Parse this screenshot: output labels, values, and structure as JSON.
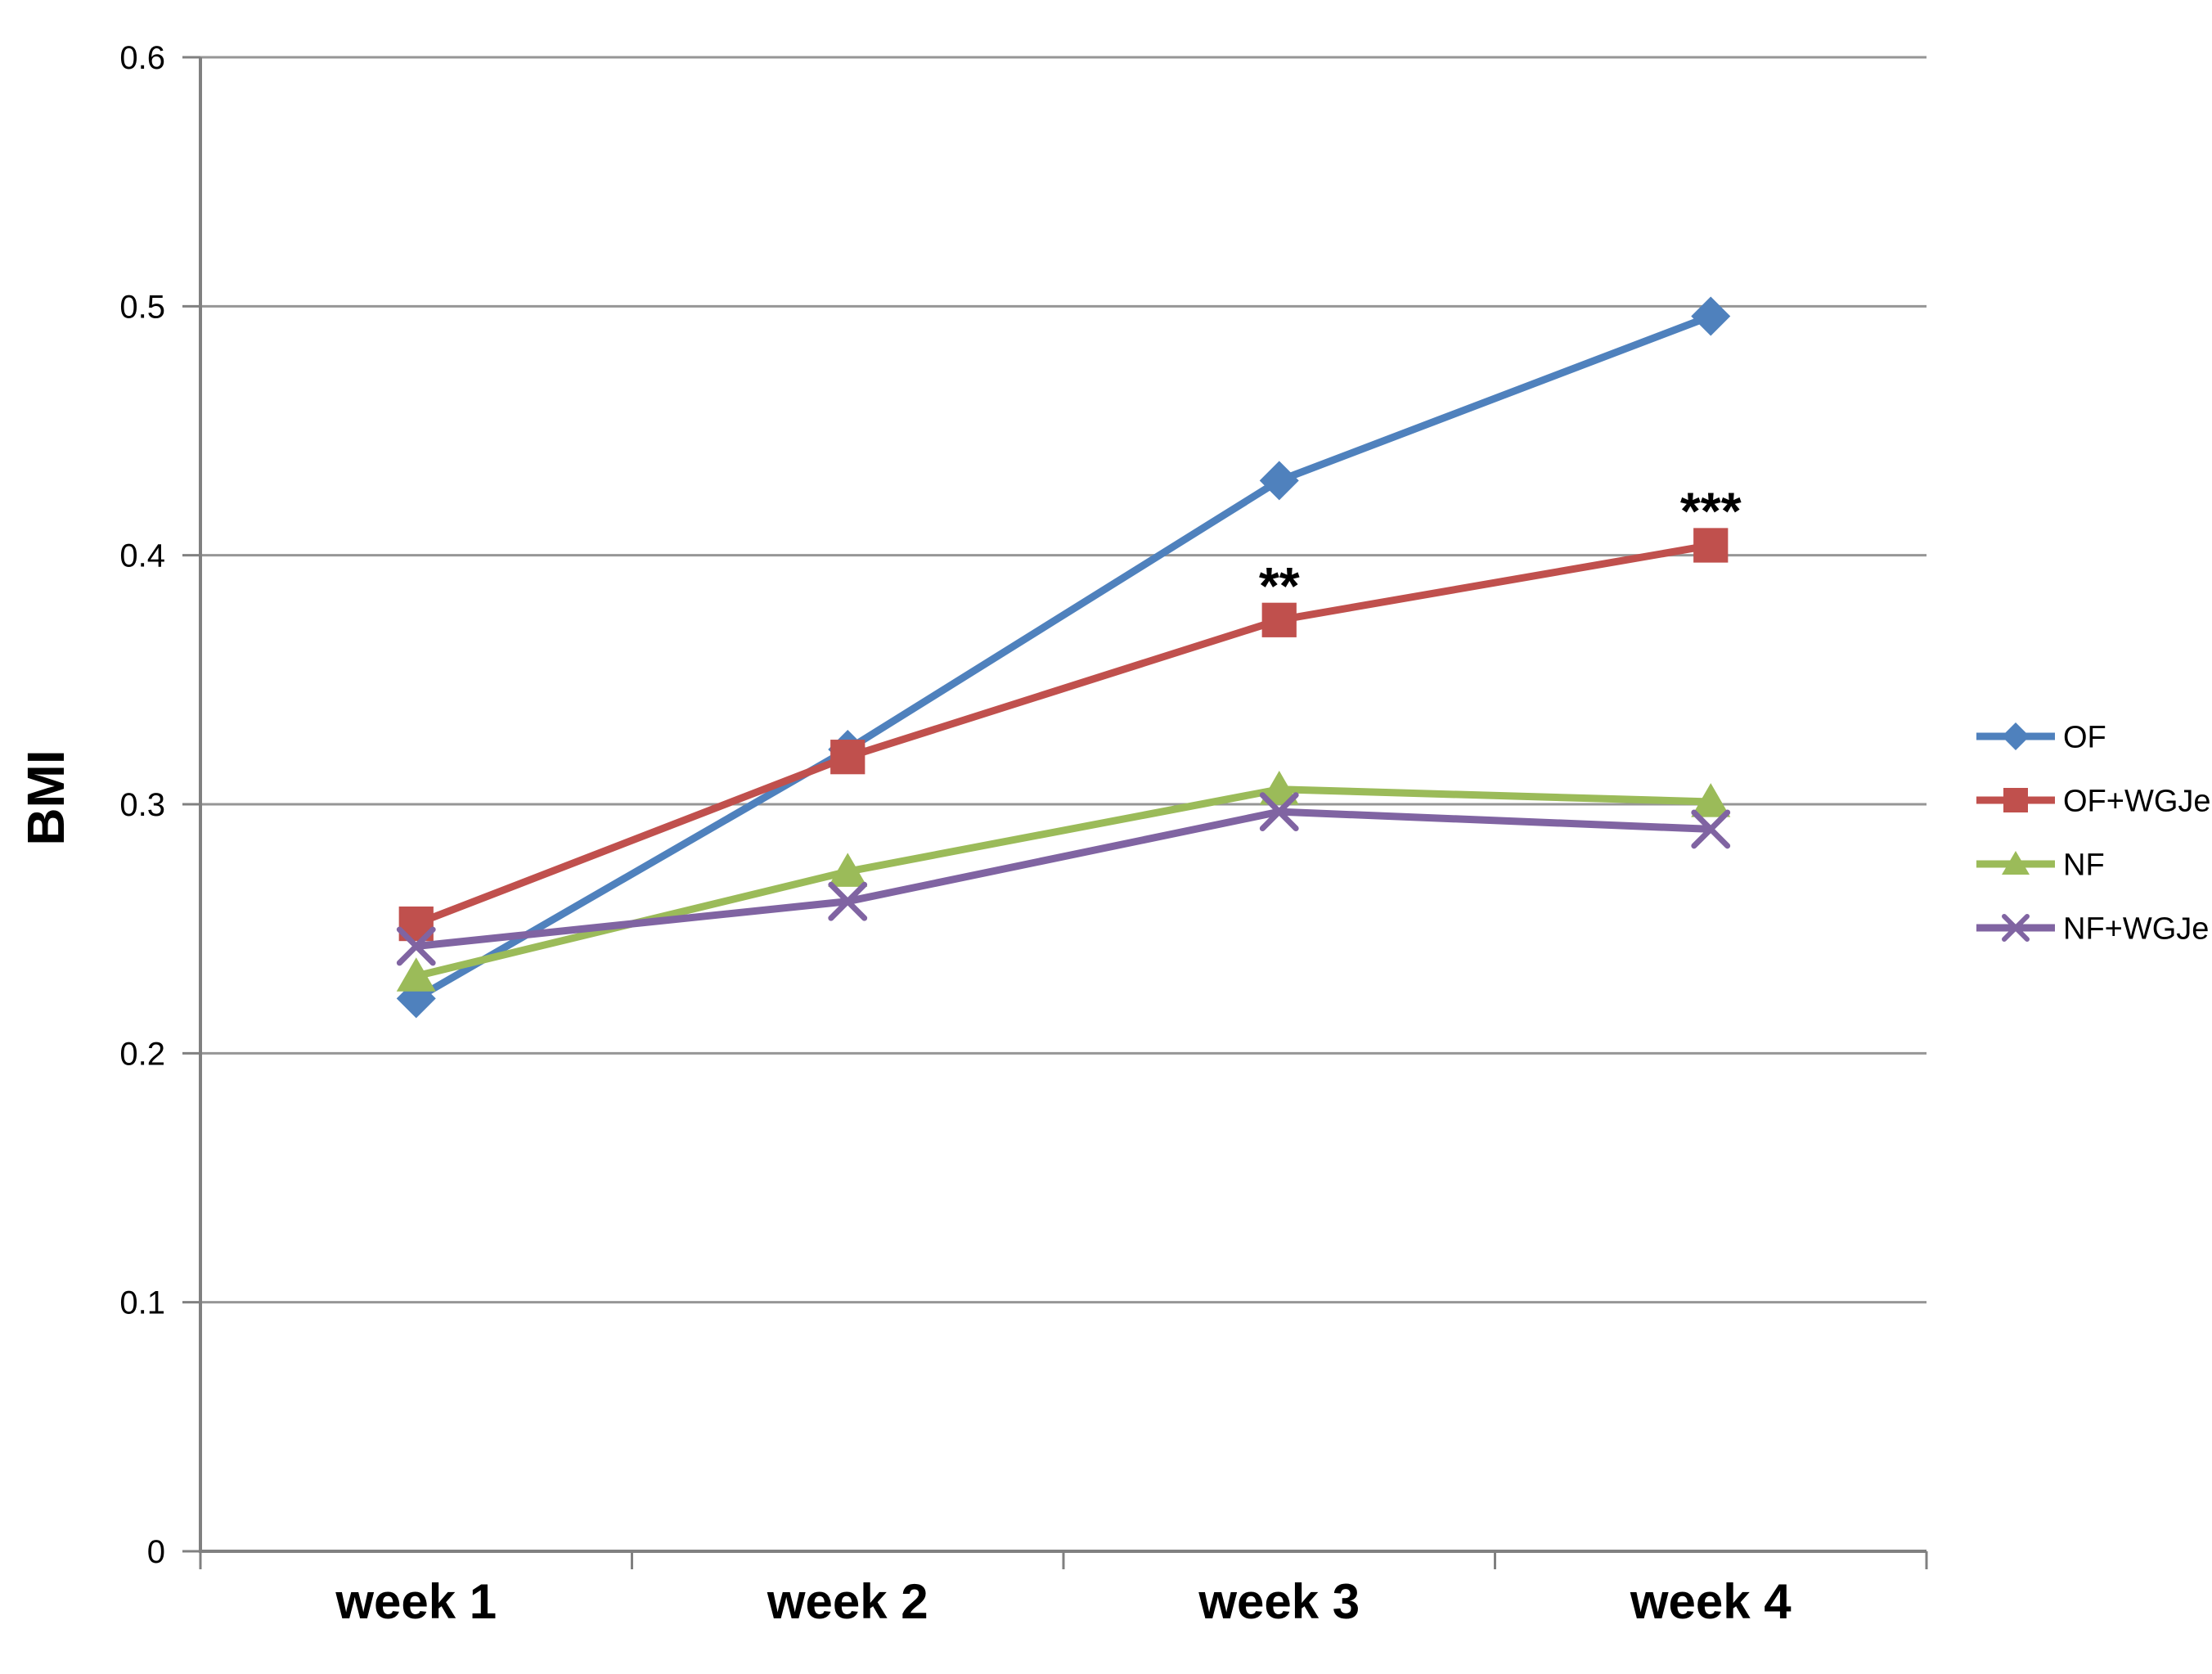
{
  "chart_data": {
    "type": "line",
    "title": "",
    "ylabel": "BMI",
    "xlabel": "",
    "categories": [
      "week 1",
      "week 2",
      "week 3",
      "week 4"
    ],
    "ylim": [
      0,
      0.6
    ],
    "yticks": [
      "0",
      "0.1",
      "0.2",
      "0.3",
      "0.4",
      "0.5",
      "0.6"
    ],
    "grid": "horizontal",
    "legend_position": "right",
    "series": [
      {
        "name": "OF",
        "color": "#4F81BD",
        "marker": "diamond",
        "values": [
          0.222,
          0.322,
          0.43,
          0.496
        ]
      },
      {
        "name": "OF+WGJe",
        "color": "#C0504D",
        "marker": "square",
        "values": [
          0.252,
          0.319,
          0.374,
          0.404
        ]
      },
      {
        "name": "NF",
        "color": "#9BBB59",
        "marker": "triangle",
        "values": [
          0.231,
          0.273,
          0.306,
          0.301
        ]
      },
      {
        "name": "NF+WGJe",
        "color": "#8064A2",
        "marker": "x",
        "values": [
          0.243,
          0.261,
          0.297,
          0.29
        ]
      }
    ],
    "annotations": [
      {
        "text": "**",
        "series": "OF+WGJe",
        "category": "week 3"
      },
      {
        "text": "***",
        "series": "OF+WGJe",
        "category": "week 4"
      }
    ],
    "colors": {
      "gridline": "#969696",
      "axis": "#808080",
      "text": "#000000",
      "background": "#ffffff"
    }
  }
}
